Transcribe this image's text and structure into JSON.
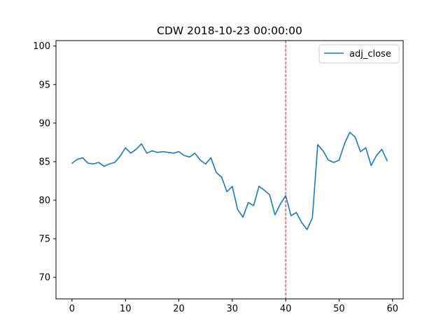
{
  "chart_data": {
    "type": "line",
    "title": "CDW 2018-10-23 00:00:00",
    "xlabel": "",
    "ylabel": "",
    "xlim": [
      -3,
      62
    ],
    "ylim": [
      67.2,
      100.7
    ],
    "xticks": [
      0,
      10,
      20,
      30,
      40,
      50,
      60
    ],
    "yticks": [
      70,
      75,
      80,
      85,
      90,
      95,
      100
    ],
    "grid": false,
    "legend": "top-right",
    "series": [
      {
        "name": "adj_close",
        "color": "#1f77b4",
        "x": [
          0,
          1,
          2,
          3,
          4,
          5,
          6,
          7,
          8,
          9,
          10,
          11,
          12,
          13,
          14,
          15,
          16,
          17,
          18,
          19,
          20,
          21,
          22,
          23,
          24,
          25,
          26,
          27,
          28,
          29,
          30,
          31,
          32,
          33,
          34,
          35,
          36,
          37,
          38,
          39,
          40,
          41,
          42,
          43,
          44,
          45,
          46,
          47,
          48,
          49,
          50,
          51,
          52,
          53,
          54,
          55,
          56,
          57,
          58,
          59
        ],
        "values": [
          84.8,
          85.3,
          85.5,
          84.8,
          84.7,
          84.9,
          84.4,
          84.7,
          84.9,
          85.7,
          86.8,
          86.1,
          86.6,
          87.3,
          86.1,
          86.4,
          86.2,
          86.3,
          86.2,
          86.1,
          86.3,
          85.8,
          85.6,
          86.1,
          85.2,
          84.7,
          85.5,
          83.6,
          83.0,
          81.1,
          81.8,
          78.8,
          77.8,
          79.7,
          79.3,
          81.8,
          81.3,
          80.7,
          78.1,
          79.5,
          80.6,
          78.0,
          78.4,
          77.1,
          76.2,
          77.7,
          87.2,
          86.4,
          85.2,
          84.9,
          85.2,
          87.3,
          88.8,
          88.2,
          86.3,
          86.8,
          84.5,
          85.8,
          86.6,
          85.1
        ]
      }
    ],
    "annotations": [
      {
        "type": "vline",
        "x": 40,
        "color": "#d62728",
        "style": "dashed"
      }
    ]
  }
}
